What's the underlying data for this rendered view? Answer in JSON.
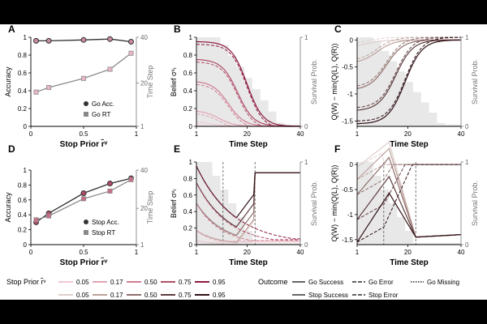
{
  "colors": {
    "background": "#ffffff",
    "frame": "#000000",
    "go_acc": "#2f2f2f",
    "go_rt": "#8a8a8a",
    "accent_go": "#c86f86",
    "accent_go_pale": "#e9b7c3",
    "accent_stop": "#6f3f45",
    "accent_stop_pale": "#c9a9a3",
    "survival_shade": "#e5e5e5"
  },
  "panels": {
    "A": {
      "letter": "A"
    },
    "B": {
      "letter": "B"
    },
    "C": {
      "letter": "C"
    },
    "D": {
      "letter": "D"
    },
    "E": {
      "letter": "E"
    },
    "F": {
      "letter": "F"
    }
  },
  "legend": {
    "stop_prior_label": "Stop Prior r̃ᵛ",
    "priors": [
      "0.05",
      "0.17",
      "0.50",
      "0.75",
      "0.95"
    ],
    "outcome_label": "Outcome",
    "outcomes_go": [
      "Go Success",
      "Go Error",
      "Go Missing"
    ],
    "outcomes_stop": [
      "Stop Success",
      "Stop Error"
    ]
  },
  "chart_data": [
    {
      "id": "A",
      "type": "line",
      "xlabel": "Stop Prior r̃ᵛ",
      "ylabel": "Accuracy",
      "y2label": "Time Step",
      "xlim": [
        0,
        1
      ],
      "ylim": [
        0,
        1
      ],
      "y2lim": [
        1,
        40
      ],
      "xticks": [
        0,
        0.5,
        1
      ],
      "yticks": [
        0.0,
        0.2,
        0.4,
        0.6,
        0.8,
        1.0
      ],
      "y2ticks": [
        1,
        20,
        40
      ],
      "x": [
        0.05,
        0.17,
        0.5,
        0.75,
        0.95
      ],
      "series": [
        {
          "name": "Go Acc.",
          "axis": "left",
          "values": [
            0.96,
            0.96,
            0.97,
            0.98,
            0.95
          ]
        },
        {
          "name": "Go RT",
          "axis": "right",
          "values": [
            16,
            18,
            22,
            26,
            33
          ]
        }
      ],
      "legend": [
        "Go Acc.",
        "Go RT"
      ]
    },
    {
      "id": "B",
      "type": "line",
      "xlabel": "Time Step",
      "ylabel": "Belief σᵛₜ",
      "y2label": "Survival Prob.",
      "xlim": [
        1,
        40
      ],
      "ylim": [
        0,
        1
      ],
      "y2lim": [
        0,
        1
      ],
      "xticks": [
        1,
        20,
        40
      ],
      "yticks": [
        0.0,
        0.2,
        0.4,
        0.6,
        0.8,
        1.0
      ],
      "y2ticks": [
        0,
        1
      ],
      "start_values": [
        0.05,
        0.17,
        0.5,
        0.75,
        0.95
      ]
    },
    {
      "id": "C",
      "type": "line",
      "xlabel": "Time Step",
      "ylabel": "Q(W) − min(Q(L), Q(R))",
      "y2label": "Survival Prob.",
      "xlim": [
        1,
        40
      ],
      "ylim": [
        -1.6,
        0.05
      ],
      "y2lim": [
        0,
        1
      ],
      "xticks": [
        1,
        20,
        40
      ],
      "yticks": [
        -1.5,
        -1.0,
        -0.5,
        0.0
      ],
      "y2ticks": [
        0,
        1
      ],
      "start_values": [
        -0.1,
        -0.4,
        -0.9,
        -1.3,
        -1.55
      ]
    },
    {
      "id": "D",
      "type": "line",
      "xlabel": "Stop Prior r̃ᵛ",
      "ylabel": "Accuracy",
      "y2label": "Time Step",
      "xlim": [
        0,
        1
      ],
      "ylim": [
        0,
        1
      ],
      "y2lim": [
        1,
        40
      ],
      "xticks": [
        0,
        0.5,
        1
      ],
      "yticks": [
        0.0,
        0.2,
        0.4,
        0.6,
        0.8,
        1.0
      ],
      "y2ticks": [
        1,
        20,
        40
      ],
      "x": [
        0.05,
        0.17,
        0.5,
        0.75,
        0.95
      ],
      "series": [
        {
          "name": "Stop Acc.",
          "axis": "left",
          "values": [
            0.3,
            0.42,
            0.69,
            0.82,
            0.89
          ]
        },
        {
          "name": "Stop RT",
          "axis": "right",
          "values": [
            14,
            16,
            25,
            29,
            35
          ]
        }
      ],
      "legend": [
        "Stop Acc.",
        "Stop RT"
      ]
    },
    {
      "id": "E",
      "type": "line",
      "xlabel": "Time Step",
      "ylabel": "Belief σᵛₜ",
      "y2label": "Survival Prob.",
      "xlim": [
        1,
        40
      ],
      "ylim": [
        0,
        1
      ],
      "y2lim": [
        0,
        1
      ],
      "xticks": [
        1,
        20,
        40
      ],
      "yticks": [
        0.0,
        0.2,
        0.4,
        0.6,
        0.8,
        1.0
      ],
      "y2ticks": [
        0,
        1
      ],
      "vlines": [
        11,
        23
      ]
    },
    {
      "id": "F",
      "type": "line",
      "xlabel": "Time Step",
      "ylabel": "Q(W) − min(Q(L), Q(R))",
      "y2label": "Survival Prob.",
      "xlim": [
        1,
        40
      ],
      "ylim": [
        -1.6,
        0.05
      ],
      "y2lim": [
        0,
        1
      ],
      "xticks": [
        1,
        20,
        40
      ],
      "yticks": [
        -1.5,
        -1.0,
        -0.5,
        0.0
      ],
      "y2ticks": [
        0,
        1
      ],
      "vlines": [
        11,
        23
      ]
    }
  ]
}
